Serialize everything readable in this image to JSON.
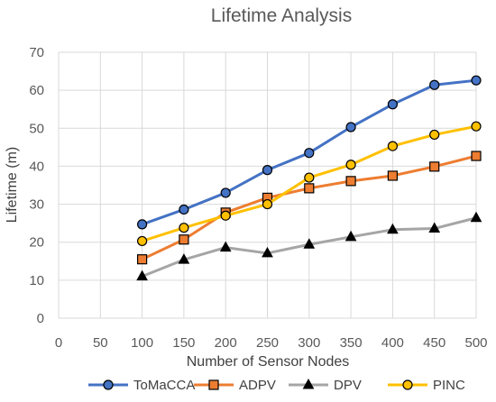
{
  "chart_data": {
    "type": "line",
    "title": "Lifetime Analysis",
    "xlabel": "Number of Sensor Nodes",
    "ylabel": "Lifetime (m)",
    "xlim": [
      0,
      500
    ],
    "ylim": [
      0,
      70
    ],
    "x_ticks": [
      "0",
      "50",
      "100",
      "150",
      "200",
      "250",
      "300",
      "350",
      "400",
      "450",
      "500"
    ],
    "y_ticks": [
      "0",
      "10",
      "20",
      "30",
      "40",
      "50",
      "60",
      "70"
    ],
    "grid": "vertical and horizontal",
    "legend_position": "bottom",
    "x": [
      100,
      150,
      200,
      250,
      300,
      350,
      400,
      450,
      500
    ],
    "series": [
      {
        "name": "ToMaCCA",
        "color": "#4472C4",
        "marker": "circle",
        "values": [
          24.7,
          28.6,
          33.0,
          39.0,
          43.5,
          50.3,
          56.3,
          61.4,
          62.6
        ]
      },
      {
        "name": "ADPV",
        "color": "#ED7D31",
        "marker": "square",
        "values": [
          15.5,
          20.7,
          27.8,
          31.7,
          34.2,
          36.1,
          37.5,
          39.9,
          42.7
        ]
      },
      {
        "name": "DPV",
        "color": "#A5A5A5",
        "marker": "triangle",
        "values": [
          11.0,
          15.4,
          18.6,
          17.1,
          19.4,
          21.4,
          23.3,
          23.6,
          26.4
        ]
      },
      {
        "name": "PINC",
        "color": "#FFC000",
        "marker": "circle",
        "values": [
          20.3,
          23.8,
          27.0,
          30.0,
          37.0,
          40.4,
          45.3,
          48.3,
          50.5
        ]
      }
    ]
  }
}
